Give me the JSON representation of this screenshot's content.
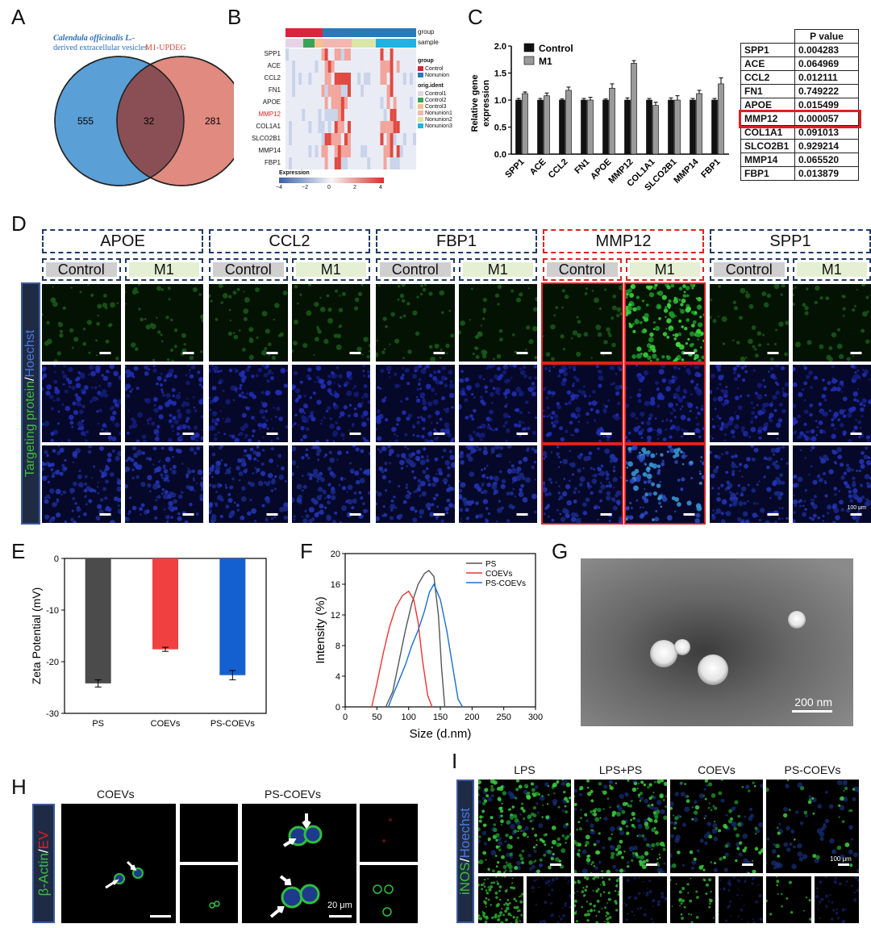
{
  "panels": {
    "A": "A",
    "B": "B",
    "C": "C",
    "D": "D",
    "E": "E",
    "F": "F",
    "G": "G",
    "H": "H",
    "I": "I"
  },
  "venn": {
    "left_title_1": "Calendula officinalis L.-",
    "left_title_2": "derived extracellular vesicles",
    "right_title": "M1-UPDEG",
    "left_only": "555",
    "overlap": "32",
    "right_only": "281",
    "colors": {
      "left": "#5a9fd6",
      "right": "#e08a80",
      "overlap": "#8a4f55"
    }
  },
  "heatmap": {
    "genes": [
      "SPP1",
      "ACE",
      "CCL2",
      "FN1",
      "APOE",
      "MMP12",
      "COL1A1",
      "SLCO2B1",
      "MMP14",
      "FBP1"
    ],
    "highlight_gene": "MMP12",
    "track_labels": [
      "group",
      "sample"
    ],
    "legend_group_title": "group",
    "legend_group": [
      {
        "name": "Control",
        "color": "#d8253b"
      },
      {
        "name": "Nonunion",
        "color": "#2a7ab8"
      }
    ],
    "legend_ident_title": "orig.ident",
    "legend_ident": [
      {
        "name": "Control1",
        "color": "#e6d4e6"
      },
      {
        "name": "Control2",
        "color": "#3aa35a"
      },
      {
        "name": "Control3",
        "color": "#f2c38f"
      },
      {
        "name": "Nonunion1",
        "color": "#f4b6b0"
      },
      {
        "name": "Nonunion2",
        "color": "#d8e6a8"
      },
      {
        "name": "Nonunion3",
        "color": "#1fb3e3"
      }
    ],
    "expr_title": "Expression",
    "expr_ticks": [
      "-4",
      "-2",
      "0",
      "2",
      "4"
    ]
  },
  "chart_data": {
    "type": "bar",
    "categories": [
      "SPP1",
      "ACE",
      "CCL2",
      "FN1",
      "APOE",
      "MMP12",
      "COL1A1",
      "SLCO2B1",
      "MMP14",
      "FBP1"
    ],
    "series": [
      {
        "name": "Control",
        "color": "#111111",
        "values": [
          1.0,
          1.0,
          1.0,
          1.0,
          1.0,
          1.0,
          1.0,
          1.0,
          1.0,
          1.0
        ],
        "errors": [
          0.03,
          0.03,
          0.02,
          0.03,
          0.02,
          0.04,
          0.03,
          0.04,
          0.03,
          0.03
        ]
      },
      {
        "name": "M1",
        "color": "#9a9a9a",
        "values": [
          1.12,
          1.08,
          1.18,
          1.0,
          1.22,
          1.68,
          0.9,
          1.0,
          1.12,
          1.3
        ],
        "errors": [
          0.03,
          0.05,
          0.06,
          0.05,
          0.08,
          0.05,
          0.06,
          0.08,
          0.06,
          0.11
        ]
      }
    ],
    "ylabel": "Relative gene expression",
    "ylabel_1": "Relative gene",
    "ylabel_2": "expression",
    "yticks": [
      "0.0",
      "0.5",
      "1.0",
      "1.5",
      "2.0"
    ],
    "ylim": [
      0,
      2.0
    ]
  },
  "pvalues": {
    "header": "P value",
    "rows": [
      {
        "gene": "SPP1",
        "p": "0.004283"
      },
      {
        "gene": "ACE",
        "p": "0.064969"
      },
      {
        "gene": "CCL2",
        "p": "0.012111"
      },
      {
        "gene": "FN1",
        "p": "0.749222"
      },
      {
        "gene": "APOE",
        "p": "0.015499"
      },
      {
        "gene": "MMP12",
        "p": "0.000057"
      },
      {
        "gene": "COL1A1",
        "p": "0.091013"
      },
      {
        "gene": "SLCO2B1",
        "p": "0.929214"
      },
      {
        "gene": "MMP14",
        "p": "0.065520"
      },
      {
        "gene": "FBP1",
        "p": "0.013879"
      }
    ],
    "highlight_row": 5
  },
  "panel_d": {
    "groups": [
      "APOE",
      "CCL2",
      "FBP1",
      "MMP12",
      "SPP1"
    ],
    "highlight_group": 3,
    "sub": [
      "Control",
      "M1"
    ],
    "side_label_a": "Targeting protein",
    "side_label_sep": "/",
    "side_label_b": "Hoechst",
    "scale": "100 μm"
  },
  "chart_e": {
    "type": "bar",
    "categories": [
      "PS",
      "COEVs",
      "PS-COEVs"
    ],
    "values": [
      -24.2,
      -17.6,
      -22.6
    ],
    "errors": [
      0.7,
      0.4,
      0.9
    ],
    "colors": [
      "#4b4b4b",
      "#f04040",
      "#1560d0"
    ],
    "ylabel": "Zeta Potential (mV)",
    "yticks": [
      "0",
      "-10",
      "-20",
      "-30"
    ],
    "ylim": [
      -30,
      0
    ]
  },
  "chart_f": {
    "type": "line",
    "xlabel": "Size (d.nm)",
    "ylabel": "Intensity (%)",
    "xticks": [
      "0",
      "50",
      "100",
      "150",
      "200",
      "250",
      "300"
    ],
    "yticks": [
      "0",
      "4",
      "8",
      "12",
      "16",
      "20"
    ],
    "xlim": [
      0,
      300
    ],
    "ylim": [
      0,
      20
    ],
    "series": [
      {
        "name": "PS",
        "color": "#555555",
        "points": [
          [
            64,
            0
          ],
          [
            75,
            2
          ],
          [
            85,
            6
          ],
          [
            95,
            10
          ],
          [
            105,
            13.5
          ],
          [
            115,
            16
          ],
          [
            125,
            17.4
          ],
          [
            132,
            17.8
          ],
          [
            140,
            17
          ],
          [
            147,
            12
          ],
          [
            152,
            5
          ],
          [
            157,
            0
          ]
        ]
      },
      {
        "name": "COEVs",
        "color": "#ee3333",
        "points": [
          [
            42,
            0
          ],
          [
            50,
            3
          ],
          [
            60,
            7
          ],
          [
            70,
            10.5
          ],
          [
            80,
            13
          ],
          [
            90,
            14.5
          ],
          [
            100,
            15.1
          ],
          [
            108,
            14
          ],
          [
            115,
            11
          ],
          [
            122,
            6
          ],
          [
            130,
            1.5
          ],
          [
            137,
            0
          ]
        ]
      },
      {
        "name": "PS-COEVs",
        "color": "#1a6fd0",
        "points": [
          [
            68,
            0
          ],
          [
            75,
            1.5
          ],
          [
            85,
            3.5
          ],
          [
            95,
            5.5
          ],
          [
            105,
            8
          ],
          [
            115,
            10
          ],
          [
            125,
            12.5
          ],
          [
            133,
            15
          ],
          [
            140,
            16
          ],
          [
            150,
            14
          ],
          [
            160,
            10
          ],
          [
            170,
            5
          ],
          [
            178,
            1
          ],
          [
            185,
            0
          ]
        ]
      }
    ]
  },
  "panel_g": {
    "scale": "200 nm"
  },
  "panel_h": {
    "groups": [
      "COEVs",
      "PS-COEVs"
    ],
    "side_label_a": "β-Actin",
    "side_label_sep": "/",
    "side_label_b": "EV",
    "scale": "20 μm"
  },
  "panel_i": {
    "groups": [
      "LPS",
      "LPS+PS",
      "COEVs",
      "PS-COEVs"
    ],
    "side_label_a": "iNOS",
    "side_label_sep": "/",
    "side_label_b": "Hoechst",
    "scale": "100 μm"
  }
}
